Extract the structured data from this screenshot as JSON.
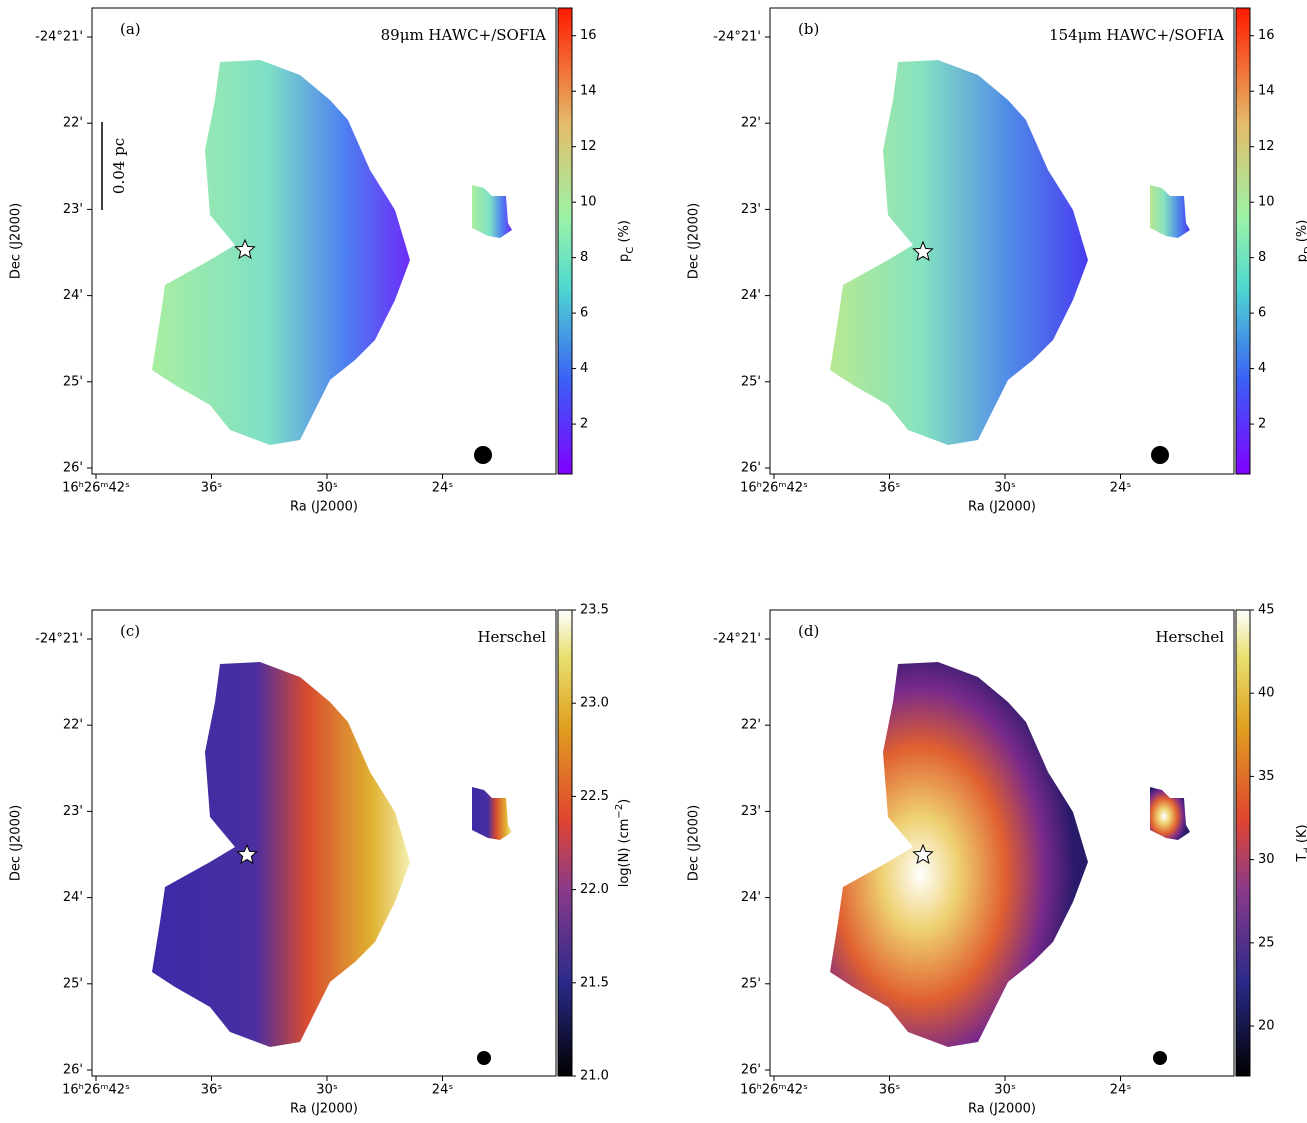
{
  "panels": [
    {
      "label": "(a)",
      "title": "89μm HAWC+/SOFIA",
      "colormap": "rainbow",
      "dec_ticks": [
        "-24°21'",
        "22'",
        "23'",
        "24'",
        "25'",
        "26'"
      ],
      "ra_ticks": [
        "16ʰ26ᵐ42ˢ",
        "36ˢ",
        "30ˢ",
        "24ˢ"
      ],
      "xlabel": "Ra (J2000)",
      "ylabel": "Dec (J2000)",
      "scale_bar": "0.04 pc",
      "colorbar": {
        "label": [
          {
            "text": "p"
          },
          {
            "text": "C",
            "script": "sub"
          },
          {
            "text": " (%)"
          }
        ],
        "lim": [
          0.2,
          17
        ],
        "ticks": [
          2,
          4,
          6,
          8,
          10,
          12,
          14,
          16
        ]
      }
    },
    {
      "label": "(b)",
      "title": "154μm HAWC+/SOFIA",
      "colormap": "rainbow",
      "dec_ticks": [
        "-24°21'",
        "22'",
        "23'",
        "24'",
        "25'",
        "26'"
      ],
      "ra_ticks": [
        "16ʰ26ᵐ42ˢ",
        "36ˢ",
        "30ˢ",
        "24ˢ"
      ],
      "xlabel": "Ra (J2000)",
      "ylabel": "Dec (J2000)",
      "colorbar": {
        "label": [
          {
            "text": "p"
          },
          {
            "text": "D",
            "script": "sub"
          },
          {
            "text": " (%)"
          }
        ],
        "lim": [
          0.2,
          17
        ],
        "ticks": [
          2,
          4,
          6,
          8,
          10,
          12,
          14,
          16
        ]
      }
    },
    {
      "label": "(c)",
      "title": "Herschel",
      "colormap": "cmr",
      "dec_ticks": [
        "-24°21'",
        "22'",
        "23'",
        "24'",
        "25'",
        "26'"
      ],
      "ra_ticks": [
        "16ʰ26ᵐ42ˢ",
        "36ˢ",
        "30ˢ",
        "24ˢ"
      ],
      "xlabel": "Ra (J2000)",
      "ylabel": "Dec (J2000)",
      "colorbar": {
        "label": [
          {
            "text": "log(N) (cm"
          },
          {
            "text": "−2",
            "script": "sup"
          },
          {
            "text": ")"
          }
        ],
        "lim": [
          21,
          23.5
        ],
        "ticks": [
          {
            "value": 21,
            "label": "21.0"
          },
          {
            "value": 21.5,
            "label": "21.5"
          },
          {
            "value": 22,
            "label": "22.0"
          },
          {
            "value": 22.5,
            "label": "22.5"
          },
          {
            "value": 23,
            "label": "23.0"
          },
          {
            "value": 23.5,
            "label": "23.5"
          }
        ]
      }
    },
    {
      "label": "(d)",
      "title": "Herschel",
      "colormap": "cmr",
      "dec_ticks": [
        "-24°21'",
        "22'",
        "23'",
        "24'",
        "25'",
        "26'"
      ],
      "ra_ticks": [
        "16ʰ26ᵐ42ˢ",
        "36ˢ",
        "30ˢ",
        "24ˢ"
      ],
      "xlabel": "Ra (J2000)",
      "ylabel": "Dec (J2000)",
      "colorbar": {
        "label": [
          {
            "text": "T"
          },
          {
            "text": "d",
            "script": "sub"
          },
          {
            "text": " (K)"
          }
        ],
        "lim": [
          17,
          45
        ],
        "ticks": [
          20,
          25,
          30,
          35,
          40,
          45
        ]
      }
    }
  ]
}
